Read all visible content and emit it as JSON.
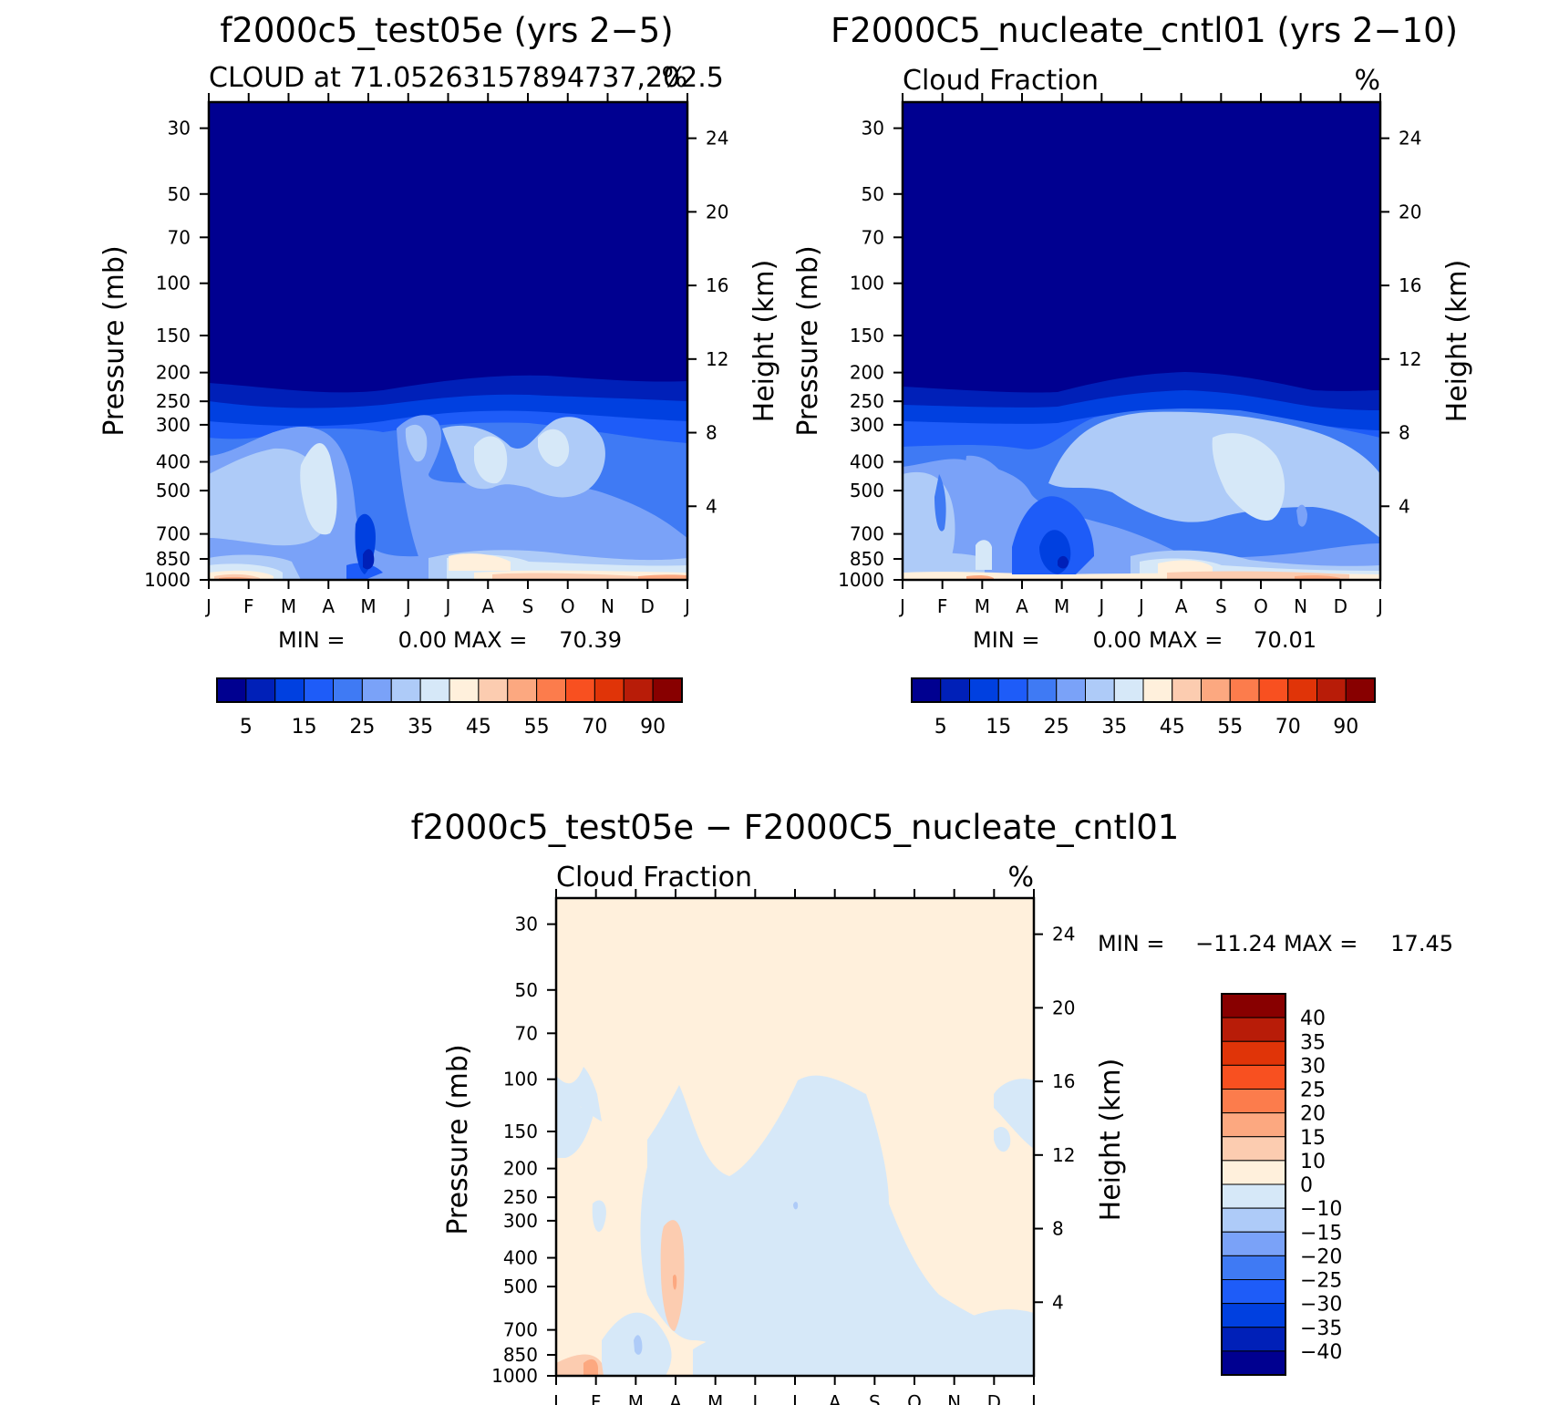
{
  "chart_data": [
    {
      "type": "heatmap",
      "title": "f2000c5_test05e (yrs 2-5)",
      "subtitle_left": "CLOUD at 71.05263157894737,202.5",
      "units": "%",
      "ylabel_left": "Pressure (mb)",
      "ylabel_right": "Height (km)",
      "x_ticks": [
        "J",
        "F",
        "M",
        "A",
        "M",
        "J",
        "J",
        "A",
        "S",
        "O",
        "N",
        "D",
        "J"
      ],
      "y_ticks_pressure": [
        30,
        50,
        70,
        100,
        150,
        200,
        250,
        300,
        400,
        500,
        700,
        850,
        1000
      ],
      "y_ticks_height": [
        24,
        20,
        16,
        12,
        8,
        4
      ],
      "stats": {
        "min_label": "MIN =",
        "min": "0.00",
        "max_label": "MAX =",
        "max": "70.39"
      },
      "colorbar": {
        "colors": [
          "#000090",
          "#0020b8",
          "#0040e0",
          "#1e5cf8",
          "#3f7af4",
          "#7aa2f8",
          "#aecbf8",
          "#d6e8f8",
          "#fff0dc",
          "#fcccb0",
          "#fca880",
          "#fc7c4c",
          "#f85020",
          "#e03408",
          "#b81c08",
          "#880000"
        ],
        "labels": [
          "5",
          "15",
          "25",
          "35",
          "45",
          "55",
          "70",
          "90"
        ]
      }
    },
    {
      "type": "heatmap",
      "title": "F2000C5_nucleate_cntl01 (yrs 2-10)",
      "subtitle_left": "Cloud Fraction",
      "units": "%",
      "ylabel_left": "Pressure (mb)",
      "ylabel_right": "Height (km)",
      "x_ticks": [
        "J",
        "F",
        "M",
        "A",
        "M",
        "J",
        "J",
        "A",
        "S",
        "O",
        "N",
        "D",
        "J"
      ],
      "y_ticks_pressure": [
        30,
        50,
        70,
        100,
        150,
        200,
        250,
        300,
        400,
        500,
        700,
        850,
        1000
      ],
      "y_ticks_height": [
        24,
        20,
        16,
        12,
        8,
        4
      ],
      "stats": {
        "min_label": "MIN =",
        "min": "0.00",
        "max_label": "MAX =",
        "max": "70.01"
      },
      "colorbar": {
        "colors": [
          "#000090",
          "#0020b8",
          "#0040e0",
          "#1e5cf8",
          "#3f7af4",
          "#7aa2f8",
          "#aecbf8",
          "#d6e8f8",
          "#fff0dc",
          "#fcccb0",
          "#fca880",
          "#fc7c4c",
          "#f85020",
          "#e03408",
          "#b81c08",
          "#880000"
        ],
        "labels": [
          "5",
          "15",
          "25",
          "35",
          "45",
          "55",
          "70",
          "90"
        ]
      }
    },
    {
      "type": "heatmap",
      "title": "f2000c5_test05e - F2000C5_nucleate_cntl01",
      "subtitle_left": "Cloud Fraction",
      "units": "%",
      "ylabel_left": "Pressure (mb)",
      "ylabel_right": "Height (km)",
      "x_ticks": [
        "J",
        "F",
        "M",
        "A",
        "M",
        "J",
        "J",
        "A",
        "S",
        "O",
        "N",
        "D",
        "J"
      ],
      "y_ticks_pressure": [
        30,
        50,
        70,
        100,
        150,
        200,
        250,
        300,
        400,
        500,
        700,
        850,
        1000
      ],
      "y_ticks_height": [
        24,
        20,
        16,
        12,
        8,
        4
      ],
      "stats": {
        "min_label": "MIN =",
        "min": "-11.24",
        "max_label": "MAX =",
        "max": "17.45"
      },
      "colorbar": {
        "colors_top_to_bottom": [
          "#880000",
          "#b81c08",
          "#e03408",
          "#f85020",
          "#fc7c4c",
          "#fca880",
          "#fcccb0",
          "#fff0dc",
          "#d6e8f8",
          "#aecbf8",
          "#7aa2f8",
          "#3f7af4",
          "#1e5cf8",
          "#0040e0",
          "#0020b8",
          "#000090"
        ],
        "labels": [
          "40",
          "35",
          "30",
          "25",
          "20",
          "15",
          "10",
          "0",
          "-10",
          "-15",
          "-20",
          "-25",
          "-30",
          "-35",
          "-40"
        ]
      }
    }
  ]
}
